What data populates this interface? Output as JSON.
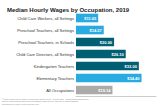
{
  "chart_data": {
    "type": "bar",
    "orientation": "horizontal",
    "title": "Median Hourly Wages by Occupation, 2019",
    "categories": [
      "Child Care Workers, all Settings",
      "Preschool Teachers, all Settings",
      "Preschool Teachers, in Schools",
      "Child Care Directors, all Settings",
      "Kindergarten Teachers",
      "Elementary Teachers",
      "All Occupations"
    ],
    "values": [
      11.65,
      14.57,
      20.0,
      26.1,
      33.0,
      34.4,
      19.14
    ],
    "value_labels": [
      "$11.65",
      "$14.57",
      "$20.00",
      "$26.10",
      "$33.00",
      "$34.40",
      "$19.14"
    ],
    "colors": [
      "#29ABE2",
      "#29ABE2",
      "#005F73",
      "#005F73",
      "#005F73",
      "#29ABE2",
      "#AAAAAA"
    ],
    "data_labels": true,
    "xlim": [
      0,
      42
    ],
    "tick_labels": "y",
    "grid": false,
    "annotations": [
      "© 2019 Center for the Study of Child Care Employment · Get the data · Created with Datawrapper\nSource: Occupational Employment Statistics (OES) Survey, Bureau of Labor Statistics,\nDepartment of Labor. Retrieved from [link]"
    ]
  }
}
